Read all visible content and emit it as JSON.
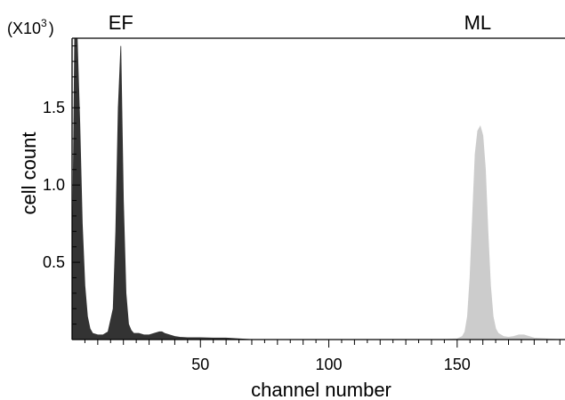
{
  "chart_data": {
    "type": "area",
    "title": "",
    "xlabel": "channel number",
    "ylabel": "cell count",
    "y_multiplier": {
      "base": "(X10",
      "exponent": "3",
      "close": ")"
    },
    "xlim": [
      0,
      192
    ],
    "ylim": [
      0,
      1.95
    ],
    "x_ticks": [
      50,
      100,
      150
    ],
    "y_ticks": [
      0.5,
      1.0,
      1.5
    ],
    "y_tick_labels": [
      "0.5",
      "1.0",
      "1.5"
    ],
    "grid": false,
    "series": [
      {
        "name": "EF",
        "color": "#333333",
        "x": [
          0,
          1,
          2,
          3,
          4,
          5,
          6,
          7,
          8,
          10,
          12,
          14,
          16,
          17,
          18,
          19,
          20,
          21,
          22,
          23,
          24,
          26,
          28,
          30,
          32,
          34,
          35,
          36,
          38,
          40,
          42,
          45,
          50,
          55,
          60,
          65,
          70
        ],
        "values": [
          0.3,
          1.95,
          1.95,
          1.4,
          0.75,
          0.35,
          0.15,
          0.07,
          0.04,
          0.03,
          0.03,
          0.05,
          0.2,
          0.7,
          1.5,
          1.9,
          0.9,
          0.3,
          0.1,
          0.06,
          0.04,
          0.04,
          0.03,
          0.03,
          0.04,
          0.05,
          0.05,
          0.04,
          0.03,
          0.02,
          0.015,
          0.012,
          0.012,
          0.01,
          0.01,
          0.005,
          0
        ]
      },
      {
        "name": "ML",
        "color": "#cccccc",
        "x": [
          145,
          150,
          152,
          153,
          154,
          155,
          156,
          157,
          158,
          159,
          160,
          161,
          162,
          163,
          164,
          165,
          166,
          168,
          170,
          172,
          174,
          176,
          178,
          180,
          185,
          190
        ],
        "values": [
          0,
          0.005,
          0.02,
          0.05,
          0.15,
          0.4,
          0.8,
          1.2,
          1.35,
          1.38,
          1.32,
          1.1,
          0.7,
          0.35,
          0.15,
          0.07,
          0.04,
          0.02,
          0.015,
          0.02,
          0.03,
          0.03,
          0.02,
          0.01,
          0.005,
          0
        ]
      }
    ],
    "annotations": [
      {
        "text": "EF",
        "x": 19
      },
      {
        "text": "ML",
        "x": 158
      }
    ]
  }
}
